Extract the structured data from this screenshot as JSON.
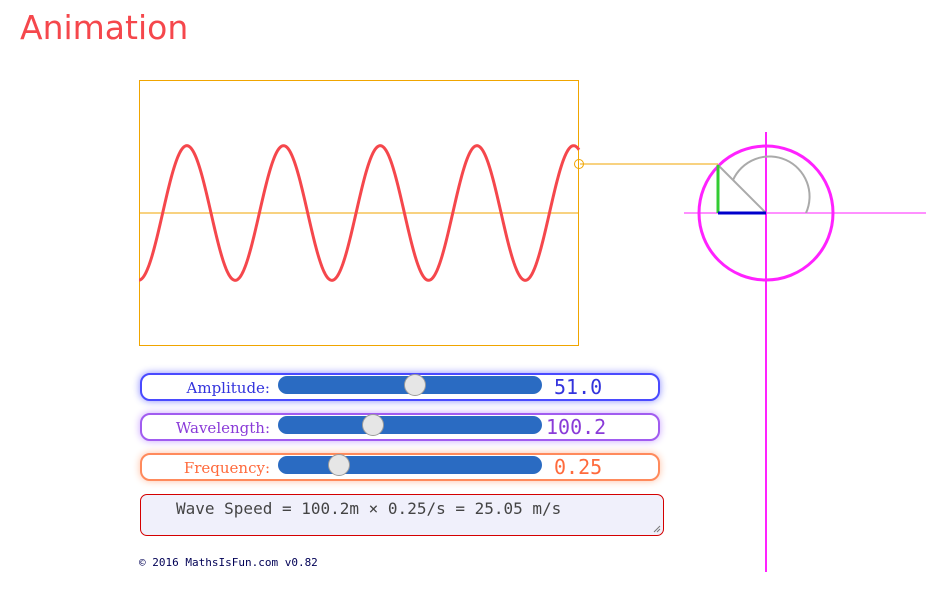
{
  "title": "Animation",
  "wave": {
    "amplitude": 51.0,
    "wavelength": 100.2,
    "wave_color": "#f5474c",
    "axis_color": "#f0a500"
  },
  "circle": {
    "circle_color": "#ff22ff",
    "axis_color": "#ff22ff",
    "vertical_component_color": "#33cc33",
    "horizontal_component_color": "#0000cc",
    "arc_color": "#aaaaaa",
    "link_color": "#f0a500"
  },
  "sliders": {
    "amplitude": {
      "label": "Amplitude:",
      "value": "51.0",
      "fraction": 0.52
    },
    "wavelength": {
      "label": "Wavelength:",
      "value": "100.2",
      "fraction": 0.36
    },
    "frequency": {
      "label": "Frequency:",
      "value": "0.25",
      "fraction": 0.23
    }
  },
  "speed": {
    "text": "Wave Speed = 100.2m × 0.25/s = 25.05 m/s"
  },
  "footer": {
    "copyright": "© 2016 MathsIsFun.com v0.82"
  }
}
